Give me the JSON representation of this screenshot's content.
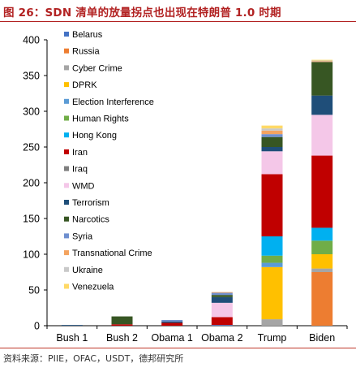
{
  "title": "图 26：SDN 清单的放量拐点也出现在特朗普 1.0 时期",
  "source": "资料来源：PIIE，OFAC，USDT，德邦研究所",
  "chart_data": {
    "type": "bar",
    "stacked": true,
    "categories": [
      "Bush 1",
      "Bush 2",
      "Obama 1",
      "Obama 2",
      "Trump",
      "Biden"
    ],
    "ylim": [
      0,
      400
    ],
    "yticks": [
      0,
      50,
      100,
      150,
      200,
      250,
      300,
      350,
      400
    ],
    "legend_position": "top-left",
    "series": [
      {
        "name": "Belarus",
        "color": "#4472c4",
        "values": [
          0,
          0,
          0,
          1,
          0,
          0
        ]
      },
      {
        "name": "Russia",
        "color": "#ed7d31",
        "values": [
          0,
          0,
          0,
          0,
          0,
          75
        ]
      },
      {
        "name": "Cyber Crime",
        "color": "#a5a5a5",
        "values": [
          0,
          0,
          0,
          0,
          9,
          5
        ]
      },
      {
        "name": "DPRK",
        "color": "#ffc000",
        "values": [
          0,
          0,
          0,
          0,
          73,
          20
        ]
      },
      {
        "name": "Election Interference",
        "color": "#5b9bd5",
        "values": [
          0,
          0,
          0,
          0,
          6,
          0
        ]
      },
      {
        "name": "Human Rights",
        "color": "#70ad47",
        "values": [
          0,
          0,
          0,
          0,
          10,
          19
        ]
      },
      {
        "name": "Hong Kong",
        "color": "#00b0f0",
        "values": [
          0,
          0,
          0,
          0,
          27,
          18
        ]
      },
      {
        "name": "Iran",
        "color": "#c00000",
        "values": [
          0,
          2,
          4,
          11,
          87,
          101
        ]
      },
      {
        "name": "Iraq",
        "color": "#7f7f7f",
        "values": [
          0,
          0,
          0,
          0,
          0,
          0
        ]
      },
      {
        "name": "WMD",
        "color": "#f4c7e8",
        "values": [
          0,
          0,
          0,
          20,
          32,
          57
        ]
      },
      {
        "name": "Terrorism",
        "color": "#1f4e79",
        "values": [
          1,
          0,
          2,
          8,
          6,
          27
        ]
      },
      {
        "name": "Narcotics",
        "color": "#375623",
        "values": [
          0,
          11,
          0,
          3,
          14,
          47
        ]
      },
      {
        "name": "Syria",
        "color": "#6f8fcf",
        "values": [
          0,
          0,
          2,
          3,
          4,
          0
        ]
      },
      {
        "name": "Transnational Crime",
        "color": "#f4a460",
        "values": [
          0,
          0,
          0,
          1,
          5,
          1
        ]
      },
      {
        "name": "Ukraine",
        "color": "#c9c9c9",
        "values": [
          0,
          0,
          0,
          0,
          3,
          1
        ]
      },
      {
        "name": "Venezuela",
        "color": "#ffd966",
        "values": [
          0,
          0,
          0,
          0,
          4,
          1
        ]
      }
    ]
  }
}
